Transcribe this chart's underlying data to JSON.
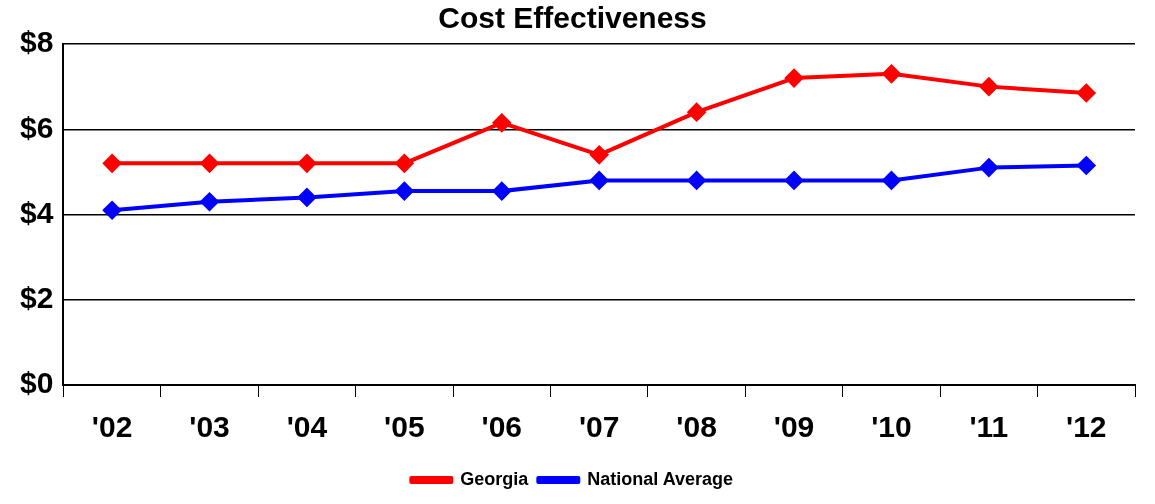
{
  "chart_data": {
    "type": "line",
    "title": "Cost Effectiveness",
    "categories": [
      "'02",
      "'03",
      "'04",
      "'05",
      "'06",
      "'07",
      "'08",
      "'09",
      "'10",
      "'11",
      "'12"
    ],
    "series": [
      {
        "name": "Georgia",
        "color": "#ff0000",
        "values": [
          5.2,
          5.2,
          5.2,
          5.2,
          6.15,
          5.4,
          6.4,
          7.2,
          7.3,
          7.0,
          6.85
        ]
      },
      {
        "name": "National Average",
        "color": "#0000ff",
        "values": [
          4.1,
          4.3,
          4.4,
          4.55,
          4.55,
          4.8,
          4.8,
          4.8,
          4.8,
          5.1,
          5.15
        ]
      }
    ],
    "ylim": [
      0,
      8
    ],
    "yticks": [
      {
        "value": 0,
        "label": "$0"
      },
      {
        "value": 2,
        "label": "$2"
      },
      {
        "value": 4,
        "label": "$4"
      },
      {
        "value": 6,
        "label": "$6"
      },
      {
        "value": 8,
        "label": "$8"
      }
    ],
    "grid": "y",
    "legend": "bottom",
    "marker": "diamond",
    "line_style": "solid"
  }
}
